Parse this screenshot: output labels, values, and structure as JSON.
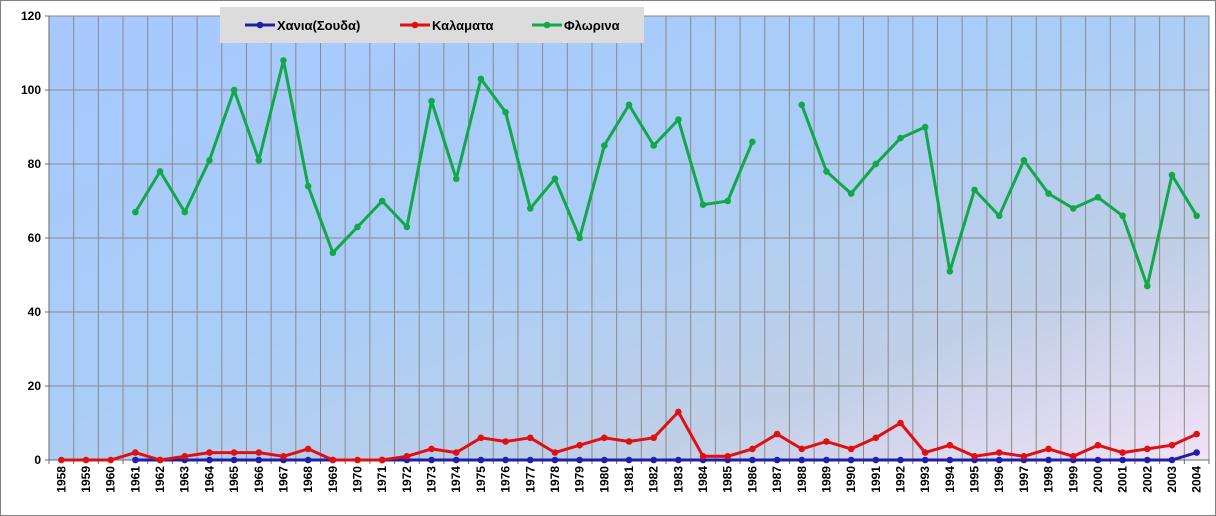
{
  "chart_data": {
    "type": "line",
    "title": "",
    "xlabel": "",
    "ylabel": "",
    "ylim": [
      0,
      120
    ],
    "yticks": [
      0,
      20,
      40,
      60,
      80,
      100,
      120
    ],
    "grid": true,
    "legend_position": "top-left",
    "categories": [
      "1958",
      "1959",
      "1960",
      "1961",
      "1962",
      "1963",
      "1964",
      "1965",
      "1966",
      "1967",
      "1968",
      "1969",
      "1970",
      "1971",
      "1972",
      "1973",
      "1974",
      "1975",
      "1976",
      "1977",
      "1978",
      "1979",
      "1980",
      "1981",
      "1982",
      "1983",
      "1984",
      "1985",
      "1986",
      "1987",
      "1988",
      "1989",
      "1990",
      "1991",
      "1992",
      "1993",
      "1994",
      "1995",
      "1996",
      "1997",
      "1998",
      "1999",
      "2000",
      "2001",
      "2002",
      "2003",
      "2004"
    ],
    "series": [
      {
        "name": "Χανια(Σουδα)",
        "color": "#1f1fa8",
        "values": [
          null,
          null,
          null,
          0,
          0,
          0,
          0,
          0,
          0,
          0,
          0,
          0,
          null,
          0,
          0,
          0,
          0,
          0,
          0,
          0,
          0,
          0,
          0,
          0,
          0,
          0,
          0,
          0,
          0,
          0,
          0,
          0,
          0,
          0,
          0,
          0,
          0,
          0,
          0,
          0,
          0,
          0,
          0,
          0,
          0,
          0,
          2
        ]
      },
      {
        "name": "Καλαματα",
        "color": "#e01010",
        "values": [
          0,
          0,
          0,
          2,
          0,
          1,
          2,
          2,
          2,
          1,
          3,
          0,
          0,
          0,
          1,
          3,
          2,
          6,
          5,
          6,
          2,
          4,
          6,
          5,
          6,
          13,
          1,
          1,
          3,
          7,
          3,
          5,
          3,
          6,
          10,
          2,
          4,
          1,
          2,
          1,
          3,
          1,
          4,
          2,
          3,
          4,
          7
        ]
      },
      {
        "name": "Φλωρινα",
        "color": "#11a84a",
        "values": [
          null,
          null,
          null,
          67,
          78,
          67,
          81,
          100,
          81,
          108,
          74,
          56,
          63,
          70,
          63,
          97,
          76,
          103,
          94,
          68,
          76,
          60,
          85,
          96,
          85,
          92,
          69,
          70,
          86,
          null,
          96,
          78,
          72,
          80,
          87,
          90,
          51,
          73,
          66,
          81,
          72,
          68,
          71,
          66,
          47,
          77,
          66
        ]
      }
    ]
  }
}
